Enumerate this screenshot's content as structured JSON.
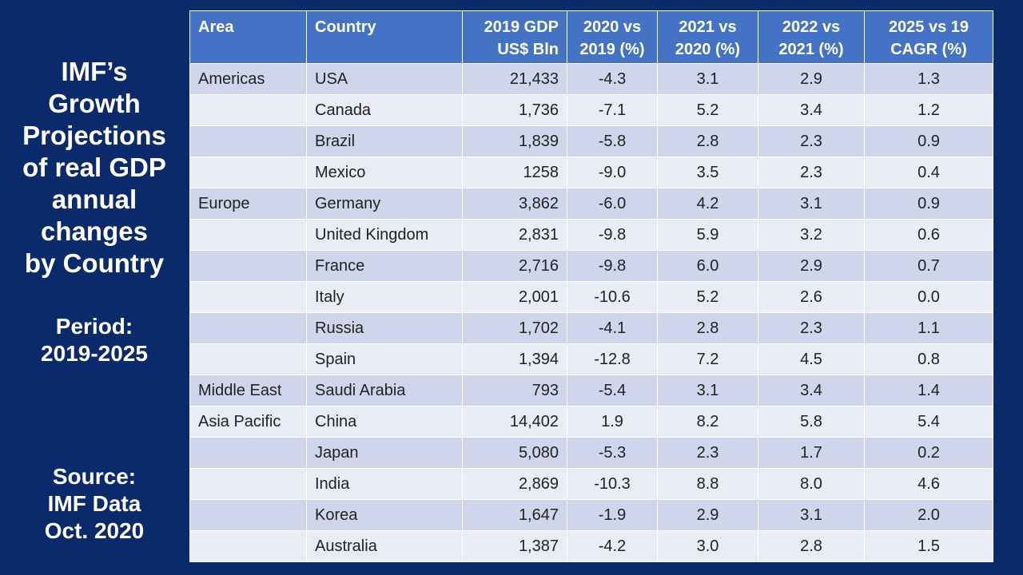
{
  "sidebar": {
    "title_lines": [
      "IMF’s",
      "Growth",
      "Projections",
      "of real GDP",
      "annual",
      "changes",
      "by Country"
    ],
    "period_lines": [
      "Period:",
      "2019-2025"
    ],
    "source_lines": [
      "Source:",
      "IMF Data",
      "Oct. 2020"
    ]
  },
  "table": {
    "headers": [
      {
        "line1": "Area",
        "line2": ""
      },
      {
        "line1": "Country",
        "line2": ""
      },
      {
        "line1": "2019 GDP",
        "line2": "US$ Bln"
      },
      {
        "line1": "2020 vs",
        "line2": "2019 (%)"
      },
      {
        "line1": "2021 vs",
        "line2": "2020 (%)"
      },
      {
        "line1": "2022 vs",
        "line2": "2021 (%)"
      },
      {
        "line1": "2025 vs 19",
        "line2": "CAGR (%)"
      }
    ],
    "rows": [
      [
        "Americas",
        "USA",
        "21,433",
        "-4.3",
        "3.1",
        "2.9",
        "1.3"
      ],
      [
        "",
        "Canada",
        "1,736",
        "-7.1",
        "5.2",
        "3.4",
        "1.2"
      ],
      [
        "",
        "Brazil",
        "1,839",
        "-5.8",
        "2.8",
        "2.3",
        "0.9"
      ],
      [
        "",
        "Mexico",
        "1258",
        "-9.0",
        "3.5",
        "2.3",
        "0.4"
      ],
      [
        "Europe",
        "Germany",
        "3,862",
        "-6.0",
        "4.2",
        "3.1",
        "0.9"
      ],
      [
        "",
        "United Kingdom",
        "2,831",
        "-9.8",
        "5.9",
        "3.2",
        "0.6"
      ],
      [
        "",
        "France",
        "2,716",
        "-9.8",
        "6.0",
        "2.9",
        "0.7"
      ],
      [
        "",
        "Italy",
        "2,001",
        "-10.6",
        "5.2",
        "2.6",
        "0.0"
      ],
      [
        "",
        "Russia",
        "1,702",
        "-4.1",
        "2.8",
        "2.3",
        "1.1"
      ],
      [
        "",
        "Spain",
        "1,394",
        "-12.8",
        "7.2",
        "4.5",
        "0.8"
      ],
      [
        "Middle East",
        "Saudi Arabia",
        "793",
        "-5.4",
        "3.1",
        "3.4",
        "1.4"
      ],
      [
        "Asia Pacific",
        "China",
        "14,402",
        "1.9",
        "8.2",
        "5.8",
        "5.4"
      ],
      [
        "",
        "Japan",
        "5,080",
        "-5.3",
        "2.3",
        "1.7",
        "0.2"
      ],
      [
        "",
        "India",
        "2,869",
        "-10.3",
        "8.8",
        "8.0",
        "4.6"
      ],
      [
        "",
        "Korea",
        "1,647",
        "-1.9",
        "2.9",
        "3.1",
        "2.0"
      ],
      [
        "",
        "Australia",
        "1,387",
        "-4.2",
        "3.0",
        "2.8",
        "1.5"
      ]
    ]
  },
  "colors": {
    "background": "#0b2a6b",
    "header": "#4472c4",
    "row_odd": "#cfd5ea",
    "row_even": "#e9ebf5"
  }
}
